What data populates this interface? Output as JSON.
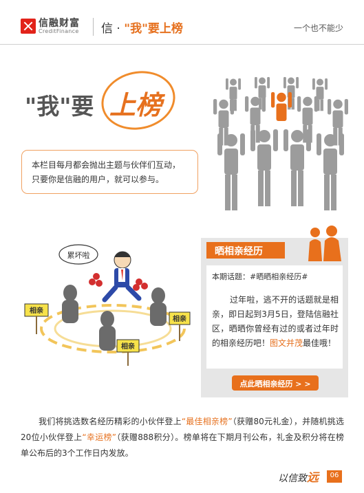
{
  "header": {
    "brand_cn": "信融财富",
    "brand_en": "CreditFinance",
    "title_prefix": "信 · ",
    "title_accent": "\"我\"要上榜",
    "slogan": "一个也不能少"
  },
  "hero": {
    "title_main": "\"我\"要",
    "title_accent": "上榜",
    "intro_line1": "本栏目每月都会抛出主题与伙伴们互动，",
    "intro_line2": "只要你是信融的用户，就可以参与。"
  },
  "scene": {
    "bubble": "累坏啦",
    "sign_left": "相亲",
    "sign_right": "相亲",
    "sign_front": "相亲"
  },
  "card": {
    "tab_label": "晒相亲经历",
    "topic": "本期话题：#晒晒相亲经历#",
    "body_1": "过年啦，逃不开的话题就是相亲，即日起到3月5日，登陆信融社区，晒晒你曾经有过的或者过年时的相亲经历吧！",
    "body_highlight": "图文并茂",
    "body_2": "最佳哦！",
    "cta_label": "点此晒相亲经历 > >"
  },
  "bottom": {
    "part1": "我们将挑选数名经历精彩的小伙伴登上",
    "hl1": "“最佳相亲榜”",
    "part2": "（获赠80元礼金），并随机挑选20位小伙伴登上",
    "hl2": "“幸运榜”",
    "part3": "（获赠888积分）。榜单将在下期月刊公布，礼金及积分将在榜单公布后的3个工作日内发放。"
  },
  "footer": {
    "slogan_prefix": "以信致",
    "slogan_accent": "远",
    "page_number": "06"
  },
  "colors": {
    "accent": "#e6711f",
    "accent_fill": "#e8701c",
    "figure_gray": "#9c9c9c",
    "card_bg": "#e6e6e6"
  }
}
